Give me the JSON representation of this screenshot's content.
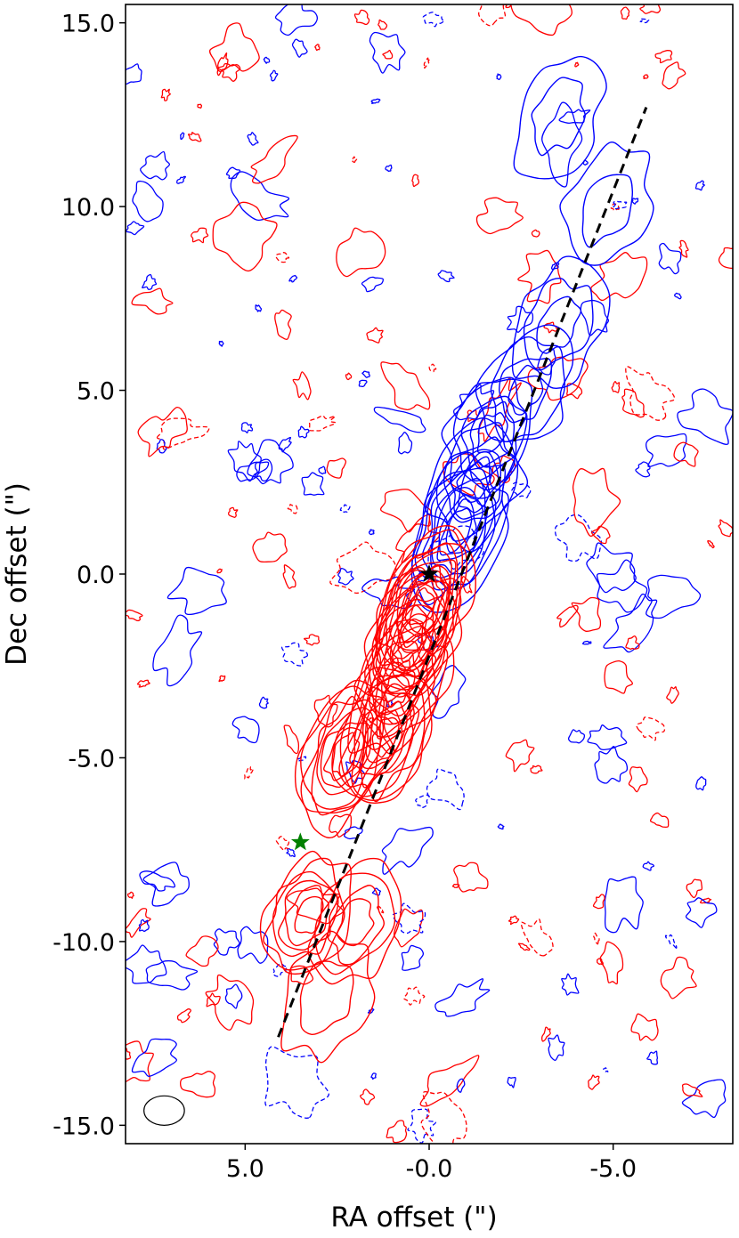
{
  "chart_data": {
    "type": "contour",
    "xlabel": "RA offset (\")",
    "ylabel": "Dec offset (\")",
    "xlim": [
      8.25,
      -8.25
    ],
    "ylim": [
      -15.5,
      15.5
    ],
    "x_inverted": true,
    "xticks": [
      5.0,
      0.0,
      -5.0
    ],
    "xtick_labels": [
      "5.0",
      "-0.0",
      "-5.0"
    ],
    "yticks": [
      15.0,
      10.0,
      5.0,
      0.0,
      -5.0,
      -10.0,
      -15.0
    ],
    "ytick_labels": [
      "15.0",
      "10.0",
      "5.0",
      "0.0",
      "-5.0",
      "-10.0",
      "-15.0"
    ],
    "grid": false,
    "series": [
      {
        "color": "#0000ff",
        "peaks": [
          {
            "x": -0.8,
            "y": 1.2,
            "amp": 9
          },
          {
            "x": -1.3,
            "y": 2.5,
            "amp": 6
          },
          {
            "x": -1.7,
            "y": 3.8,
            "amp": 5
          },
          {
            "x": -2.6,
            "y": 5.0,
            "amp": 4
          },
          {
            "x": -3.5,
            "y": 6.8,
            "amp": 3
          },
          {
            "x": -4.8,
            "y": 10.0,
            "amp": 2
          },
          {
            "x": -3.5,
            "y": 12.5,
            "amp": 2
          }
        ]
      },
      {
        "color": "#ff0000",
        "peaks": [
          {
            "x": 0.2,
            "y": -0.9,
            "amp": 12
          },
          {
            "x": 0.5,
            "y": -1.8,
            "amp": 9
          },
          {
            "x": 0.8,
            "y": -3.0,
            "amp": 7
          },
          {
            "x": 1.2,
            "y": -4.4,
            "amp": 9
          },
          {
            "x": 2.3,
            "y": -4.9,
            "amp": 8
          },
          {
            "x": 3.3,
            "y": -9.3,
            "amp": 6
          },
          {
            "x": 2.0,
            "y": -9.5,
            "amp": 4
          },
          {
            "x": 2.8,
            "y": -11.5,
            "amp": 2
          }
        ]
      }
    ],
    "jet_axis": {
      "color": "#000000",
      "x": [
        4.1,
        -5.9
      ],
      "y": [
        -12.6,
        12.7
      ]
    },
    "markers": [
      {
        "symbol": "star",
        "color": "#000000",
        "x": 0.0,
        "y": 0.0
      },
      {
        "symbol": "star",
        "color": "#008000",
        "x": 3.5,
        "y": -7.3
      }
    ],
    "beam": {
      "x": 7.2,
      "y": -14.6,
      "major": 0.55,
      "minor": 0.4
    }
  }
}
